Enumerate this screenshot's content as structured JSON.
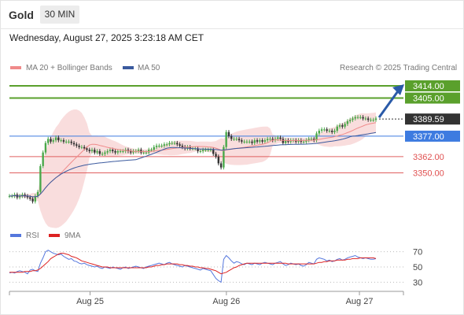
{
  "header": {
    "asset": "Gold",
    "timeframe": "30 MIN",
    "datetime": "Wednesday, August 27, 2025 3:23:18 AM CET"
  },
  "legend": {
    "ma20": "MA 20 + Bollinger Bands",
    "ma50": "MA 50",
    "credit": "Research © 2025 Trading Central",
    "rsi": "RSI",
    "rsi_ma": "9MA"
  },
  "colors": {
    "ma20": "#f08a8a",
    "ma50": "#3b5a9e",
    "band_fill": "#f8d7d7",
    "resistance": "#5aa02c",
    "pivot": "#3d7be0",
    "support": "#e06060",
    "candle": "#4aa84a",
    "price_box": "#333333",
    "arrow": "#2a5aa8",
    "rsi_line": "#5577dd",
    "rsi_ma_line": "#dd2222"
  },
  "chart_data": [
    {
      "type": "candlestick",
      "x_labels": [
        "Aug 25",
        "Aug 26",
        "Aug 27"
      ],
      "ylim": [
        3315,
        3425
      ],
      "current_price": 3389.59,
      "levels": [
        {
          "value": 3414.0,
          "label": "3414.00",
          "kind": "resistance"
        },
        {
          "value": 3405.0,
          "label": "3405.00",
          "kind": "resistance"
        },
        {
          "value": 3377.0,
          "label": "3377.00",
          "kind": "pivot"
        },
        {
          "value": 3362.0,
          "label": "3362.00",
          "kind": "support"
        },
        {
          "value": 3350.0,
          "label": "3350.00",
          "kind": "support"
        }
      ],
      "close": [
        3333,
        3333,
        3334,
        3332,
        3333,
        3334,
        3333,
        3332,
        3331,
        3329,
        3333,
        3336,
        3355,
        3365,
        3372,
        3375,
        3373,
        3374,
        3376,
        3374,
        3374,
        3373,
        3373,
        3373,
        3372,
        3371,
        3370,
        3369,
        3369,
        3368,
        3367,
        3366,
        3367,
        3365,
        3366,
        3364,
        3364,
        3365,
        3366,
        3367,
        3366,
        3365,
        3366,
        3366,
        3366,
        3367,
        3366,
        3365,
        3366,
        3366,
        3367,
        3365,
        3365,
        3365,
        3367,
        3367,
        3369,
        3370,
        3370,
        3370,
        3371,
        3371,
        3372,
        3372,
        3372,
        3371,
        3370,
        3369,
        3368,
        3369,
        3368,
        3368,
        3368,
        3366,
        3366,
        3367,
        3367,
        3367,
        3367,
        3364,
        3362,
        3357,
        3354,
        3369,
        3380,
        3377,
        3375,
        3375,
        3375,
        3374,
        3373,
        3373,
        3373,
        3373,
        3372,
        3374,
        3373,
        3374,
        3373,
        3374,
        3375,
        3375,
        3374,
        3375,
        3376,
        3375,
        3372,
        3374,
        3373,
        3374,
        3374,
        3373,
        3374,
        3373,
        3373,
        3374,
        3375,
        3375,
        3374,
        3379,
        3381,
        3382,
        3382,
        3381,
        3381,
        3380,
        3381,
        3384,
        3385,
        3384,
        3386,
        3388,
        3389,
        3390,
        3391,
        3391,
        3391,
        3390,
        3390,
        3389,
        3389,
        3389,
        3390
      ]
    },
    {
      "type": "line",
      "title": "RSI",
      "ylim": [
        20,
        80
      ],
      "y_ticks": [
        70,
        50,
        30
      ],
      "series": [
        {
          "name": "RSI",
          "values": [
            42,
            43,
            42,
            44,
            45,
            44,
            43,
            41,
            46,
            47,
            45,
            44,
            55,
            62,
            70,
            72,
            70,
            68,
            67,
            66,
            67,
            64,
            62,
            60,
            61,
            58,
            57,
            55,
            54,
            55,
            53,
            52,
            51,
            50,
            51,
            49,
            48,
            50,
            49,
            48,
            50,
            49,
            48,
            47,
            49,
            50,
            48,
            49,
            50,
            51,
            50,
            49,
            48,
            50,
            51,
            52,
            53,
            54,
            55,
            54,
            53,
            55,
            56,
            54,
            53,
            52,
            51,
            50,
            52,
            51,
            50,
            49,
            48,
            47,
            46,
            48,
            47,
            46,
            45,
            40,
            35,
            32,
            30,
            60,
            65,
            62,
            58,
            55,
            57,
            56,
            54,
            53,
            55,
            54,
            53,
            55,
            54,
            53,
            55,
            56,
            55,
            54,
            53,
            55,
            56,
            57,
            54,
            52,
            53,
            55,
            54,
            53,
            54,
            52,
            51,
            53,
            56,
            55,
            54,
            60,
            62,
            61,
            60,
            58,
            59,
            57,
            58,
            60,
            61,
            59,
            60,
            62,
            63,
            64,
            65,
            63,
            62,
            61,
            62,
            61,
            60,
            60,
            61
          ]
        },
        {
          "name": "9MA",
          "values": [
            43,
            43,
            43,
            43,
            43,
            43,
            44,
            44,
            44,
            45,
            45,
            46,
            48,
            51,
            54,
            57,
            61,
            63,
            65,
            67,
            68,
            68,
            67,
            66,
            64,
            63,
            62,
            60,
            58,
            57,
            56,
            55,
            54,
            53,
            52,
            51,
            50,
            50,
            50,
            49,
            49,
            49,
            49,
            49,
            49,
            49,
            49,
            49,
            49,
            49,
            49,
            49,
            49,
            49,
            50,
            50,
            51,
            52,
            52,
            53,
            53,
            54,
            54,
            54,
            54,
            54,
            53,
            53,
            52,
            52,
            51,
            51,
            50,
            50,
            49,
            49,
            48,
            48,
            47,
            46,
            45,
            43,
            41,
            42,
            43,
            45,
            47,
            49,
            50,
            52,
            53,
            54,
            55,
            55,
            55,
            55,
            55,
            55,
            55,
            55,
            55,
            55,
            55,
            55,
            55,
            55,
            55,
            55,
            54,
            54,
            54,
            54,
            54,
            54,
            54,
            54,
            54,
            54,
            54,
            55,
            56,
            56,
            57,
            57,
            58,
            58,
            58,
            59,
            59,
            59,
            59,
            60,
            60,
            61,
            61,
            61,
            62,
            62,
            62,
            62,
            62,
            62,
            61
          ]
        }
      ]
    }
  ]
}
